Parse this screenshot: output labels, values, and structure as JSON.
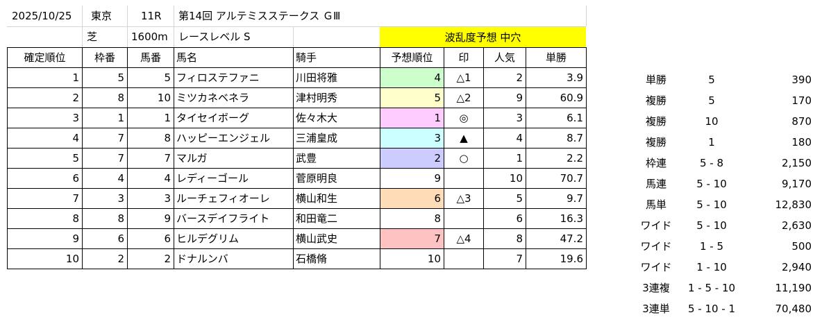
{
  "header": {
    "date": "2025/10/25",
    "venue": "東京",
    "race_no": "11R",
    "race_name": "第14回 アルテミスステークス ＧⅢ",
    "surface": "芝",
    "distance": "1600m",
    "race_level": "レースレベル S",
    "banner": "波乱度予想 中穴"
  },
  "columns": [
    "確定順位",
    "枠番",
    "馬番",
    "馬名",
    "騎手",
    "予想順位",
    "印",
    "人気",
    "単勝"
  ],
  "colors": {
    "banner": "#ffff00",
    "pred_1": "#ffccff",
    "pred_2": "#ccccff",
    "pred_3": "#ccffff",
    "pred_4": "#ccffcc",
    "pred_5": "#ffffcc",
    "pred_6": "#ffdcb8",
    "pred_7": "#ffc2c2"
  },
  "rows": [
    {
      "rank": "1",
      "waku": "5",
      "umaban": "5",
      "horse": "フィロステファニ",
      "jockey": "川田将雅",
      "pred": "4",
      "mark": "△1",
      "pop": "2",
      "odds": "3.9",
      "color": "#ccffcc"
    },
    {
      "rank": "2",
      "waku": "8",
      "umaban": "10",
      "horse": "ミツカネベネラ",
      "jockey": "津村明秀",
      "pred": "5",
      "mark": "△2",
      "pop": "9",
      "odds": "60.9",
      "color": "#ffffcc"
    },
    {
      "rank": "3",
      "waku": "1",
      "umaban": "1",
      "horse": "タイセイボーグ",
      "jockey": "佐々木大",
      "pred": "1",
      "mark": "◎",
      "pop": "3",
      "odds": "6.1",
      "color": "#ffccff"
    },
    {
      "rank": "4",
      "waku": "7",
      "umaban": "8",
      "horse": "ハッピーエンジェル",
      "jockey": "三浦皇成",
      "pred": "3",
      "mark": "▲",
      "pop": "4",
      "odds": "8.7",
      "color": "#ccffff"
    },
    {
      "rank": "5",
      "waku": "7",
      "umaban": "7",
      "horse": "マルガ",
      "jockey": "武豊",
      "pred": "2",
      "mark": "○",
      "pop": "1",
      "odds": "2.2",
      "color": "#ccccff"
    },
    {
      "rank": "6",
      "waku": "4",
      "umaban": "4",
      "horse": "レディーゴール",
      "jockey": "菅原明良",
      "pred": "9",
      "mark": "",
      "pop": "10",
      "odds": "70.7",
      "color": ""
    },
    {
      "rank": "7",
      "waku": "3",
      "umaban": "3",
      "horse": "ルーチェフィオーレ",
      "jockey": "横山和生",
      "pred": "6",
      "mark": "△3",
      "pop": "5",
      "odds": "9.7",
      "color": "#ffdcb8"
    },
    {
      "rank": "8",
      "waku": "8",
      "umaban": "9",
      "horse": "バースデイフライト",
      "jockey": "和田竜二",
      "pred": "8",
      "mark": "",
      "pop": "6",
      "odds": "16.3",
      "color": ""
    },
    {
      "rank": "9",
      "waku": "6",
      "umaban": "6",
      "horse": "ヒルデグリム",
      "jockey": "横山武史",
      "pred": "7",
      "mark": "△4",
      "pop": "8",
      "odds": "47.2",
      "color": "#ffc2c2"
    },
    {
      "rank": "10",
      "waku": "2",
      "umaban": "2",
      "horse": "ドナルンバ",
      "jockey": "石橋脩",
      "pred": "10",
      "mark": "",
      "pop": "7",
      "odds": "19.6",
      "color": ""
    }
  ],
  "payouts": [
    {
      "type": "単勝",
      "combo": "5",
      "value": "390"
    },
    {
      "type": "複勝",
      "combo": "5",
      "value": "170"
    },
    {
      "type": "複勝",
      "combo": "10",
      "value": "870"
    },
    {
      "type": "複勝",
      "combo": "1",
      "value": "180"
    },
    {
      "type": "枠連",
      "combo": "5 - 8",
      "value": "2,150"
    },
    {
      "type": "馬連",
      "combo": "5 - 10",
      "value": "9,170"
    },
    {
      "type": "馬単",
      "combo": "5 - 10",
      "value": "12,830"
    },
    {
      "type": "ワイド",
      "combo": "5 - 10",
      "value": "2,630"
    },
    {
      "type": "ワイド",
      "combo": "1 - 5",
      "value": "500"
    },
    {
      "type": "ワイド",
      "combo": "1 - 10",
      "value": "2,940"
    },
    {
      "type": "3連複",
      "combo": "1 - 5 - 10",
      "value": "11,190"
    },
    {
      "type": "3連単",
      "combo": "5 - 10 - 1",
      "value": "70,480"
    }
  ]
}
